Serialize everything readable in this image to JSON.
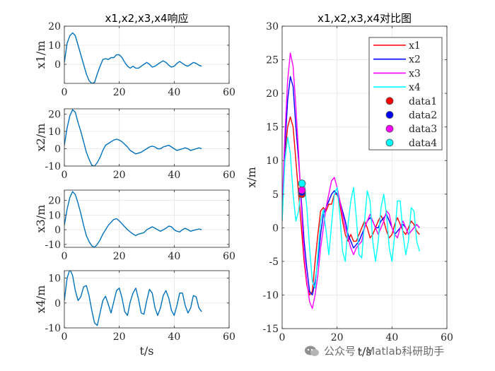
{
  "colors": {
    "x1": "#ff0000",
    "x2": "#0000ff",
    "x3": "#ff00ff",
    "x4": "#00ffff",
    "subplot_line": "#0072bd",
    "grid": "#e6e6e6",
    "axis": "#262626",
    "marker_edge_data1": "#8a6d00"
  },
  "watermark": "公众号 · Matlab科研助手",
  "chart_data": [
    {
      "type": "line",
      "title": "x1,x2,x3,x4响应",
      "xlabel": "",
      "ylabel": "x1/m",
      "xlim": [
        0,
        60
      ],
      "ylim": [
        -10,
        20
      ],
      "xticks": [
        "0",
        "20",
        "40",
        "60"
      ],
      "yticks": [
        "20",
        "10",
        "0"
      ],
      "grid": true,
      "series": [
        {
          "x": [
            0,
            1,
            2,
            3,
            4,
            5,
            6,
            7,
            8,
            9,
            10,
            11,
            12,
            13,
            14,
            15,
            16,
            17,
            18,
            19,
            20,
            21,
            22,
            23,
            24,
            25,
            26,
            27,
            28,
            29,
            30,
            31,
            32,
            33,
            34,
            35,
            36,
            37,
            38,
            39,
            40,
            41,
            42,
            43,
            44,
            45,
            46,
            47,
            48,
            49,
            50
          ],
          "values": [
            1,
            11,
            15,
            16.5,
            15,
            10,
            5,
            0,
            -5,
            -8.5,
            -10,
            -9.5,
            -5,
            -1,
            2.5,
            3,
            2.5,
            3.5,
            3.5,
            5,
            5,
            3.5,
            1,
            -1,
            -2,
            -1,
            -2,
            -2,
            -1,
            0,
            1,
            0,
            -1.5,
            -1,
            0,
            1,
            1.8,
            1,
            -0.5,
            -1.5,
            -1,
            0.5,
            1.5,
            0.5,
            -0.5,
            -1,
            0,
            1,
            0.5,
            -0.5,
            -1
          ]
        }
      ]
    },
    {
      "type": "line",
      "xlabel": "",
      "ylabel": "x2/m",
      "xlim": [
        0,
        60
      ],
      "ylim": [
        -10,
        23
      ],
      "xticks": [
        "0",
        "20",
        "40",
        "60"
      ],
      "yticks": [
        "20",
        "10",
        "0",
        "-10"
      ],
      "grid": true,
      "series": [
        {
          "x": [
            0,
            1,
            2,
            3,
            4,
            5,
            6,
            7,
            8,
            9,
            10,
            11,
            12,
            13,
            14,
            15,
            16,
            17,
            18,
            19,
            20,
            21,
            22,
            23,
            24,
            25,
            26,
            27,
            28,
            29,
            30,
            31,
            32,
            33,
            34,
            35,
            36,
            37,
            38,
            39,
            40,
            41,
            42,
            43,
            44,
            45,
            46,
            47,
            48,
            49,
            50
          ],
          "values": [
            2,
            12,
            19,
            22.5,
            21,
            15,
            10,
            4,
            -2,
            -6,
            -9.5,
            -10,
            -8,
            -5,
            -1,
            2,
            3,
            4,
            5,
            5.5,
            5,
            4,
            2.5,
            1,
            -1,
            -2,
            -3,
            -2.5,
            -2,
            -1,
            0,
            1,
            1.5,
            1,
            0,
            0,
            1,
            1.5,
            2,
            1,
            0,
            -1,
            -0.5,
            0,
            0.5,
            0,
            -1,
            -0.5,
            0,
            0.5,
            0
          ]
        }
      ]
    },
    {
      "type": "line",
      "xlabel": "",
      "ylabel": "x3/m",
      "xlim": [
        0,
        60
      ],
      "ylim": [
        -12,
        27
      ],
      "xticks": [
        "0",
        "20",
        "40",
        "60"
      ],
      "yticks": [
        "20",
        "10",
        "0",
        "-10"
      ],
      "grid": true,
      "series": [
        {
          "x": [
            0,
            1,
            2,
            3,
            4,
            5,
            6,
            7,
            8,
            9,
            10,
            11,
            12,
            13,
            14,
            15,
            16,
            17,
            18,
            19,
            20,
            21,
            22,
            23,
            24,
            25,
            26,
            27,
            28,
            29,
            30,
            31,
            32,
            33,
            34,
            35,
            36,
            37,
            38,
            39,
            40,
            41,
            42,
            43,
            44,
            45,
            46,
            47,
            48,
            49,
            50
          ],
          "values": [
            3,
            14,
            22,
            26,
            24,
            18,
            11,
            3,
            -4,
            -8,
            -11,
            -12,
            -10,
            -7,
            -3,
            0,
            3,
            5,
            7,
            7.5,
            6,
            4,
            2,
            0,
            -1.5,
            -3,
            -4,
            -3,
            -2.5,
            -2,
            0,
            1,
            2,
            1,
            0,
            -1,
            0,
            1,
            2.5,
            2,
            0,
            -1,
            -1.5,
            0,
            1,
            0,
            -1,
            -0.5,
            0,
            0.5,
            0
          ]
        }
      ]
    },
    {
      "type": "line",
      "xlabel": "t/s",
      "ylabel": "x4/m",
      "xlim": [
        0,
        60
      ],
      "ylim": [
        -10,
        13
      ],
      "xticks": [
        "0",
        "20",
        "40",
        "60"
      ],
      "yticks": [
        "10",
        "0",
        "-10"
      ],
      "grid": true,
      "series": [
        {
          "x": [
            0,
            1,
            2,
            3,
            4,
            5,
            6,
            7,
            8,
            9,
            10,
            11,
            12,
            13,
            14,
            15,
            16,
            17,
            18,
            19,
            20,
            21,
            22,
            23,
            24,
            25,
            26,
            27,
            28,
            29,
            30,
            31,
            32,
            33,
            34,
            35,
            36,
            37,
            38,
            39,
            40,
            41,
            42,
            43,
            44,
            45,
            46,
            47,
            48,
            49,
            50
          ],
          "values": [
            1,
            10,
            13.5,
            11,
            5,
            1,
            2.5,
            6.5,
            7,
            3,
            -3,
            -8,
            -9,
            -4,
            1,
            2.7,
            -0.5,
            -4,
            0.5,
            5,
            6,
            2,
            -3.5,
            -5,
            0.5,
            4,
            6,
            1.5,
            -4,
            -4.5,
            1,
            5.5,
            4,
            -2,
            -5,
            -2,
            3,
            5,
            2,
            -3,
            -5,
            -1,
            4,
            4,
            -1,
            -4,
            -2,
            3,
            2.5,
            -2,
            -3.5
          ]
        }
      ]
    },
    {
      "type": "line",
      "title": "x1,x2,x3,x4对比图",
      "xlabel": "t/s",
      "ylabel": "x/m",
      "xlim": [
        0,
        60
      ],
      "ylim": [
        -15,
        30
      ],
      "xticks": [
        "0",
        "20",
        "40",
        "60"
      ],
      "yticks": [
        "30",
        "25",
        "20",
        "15",
        "10",
        "5",
        "0",
        "-5",
        "-10",
        "-15"
      ],
      "grid": true,
      "legend": "top-right",
      "series": [
        {
          "name": "x1",
          "color": "#ff0000",
          "x": [
            0,
            1,
            2,
            3,
            4,
            5,
            6,
            7,
            8,
            9,
            10,
            11,
            12,
            13,
            14,
            15,
            16,
            17,
            18,
            19,
            20,
            21,
            22,
            23,
            24,
            25,
            26,
            27,
            28,
            29,
            30,
            31,
            32,
            33,
            34,
            35,
            36,
            37,
            38,
            39,
            40,
            41,
            42,
            43,
            44,
            45,
            46,
            47,
            48,
            49,
            50
          ],
          "values": [
            1,
            11,
            15,
            16.5,
            15,
            10,
            5,
            0,
            -5,
            -8.5,
            -10,
            -9.5,
            -5,
            -1,
            2.5,
            3,
            2.5,
            3.5,
            3.5,
            5,
            5,
            3.5,
            1,
            -1,
            -2,
            -1,
            -2,
            -2,
            -1,
            0,
            1,
            0,
            -1.5,
            -1,
            0,
            1,
            1.8,
            1,
            -0.5,
            -1.5,
            -1,
            0.5,
            1.5,
            0.5,
            -0.5,
            -1,
            0,
            1,
            0.5,
            -0.5,
            -1
          ]
        },
        {
          "name": "x2",
          "color": "#0000ff",
          "x": [
            0,
            1,
            2,
            3,
            4,
            5,
            6,
            7,
            8,
            9,
            10,
            11,
            12,
            13,
            14,
            15,
            16,
            17,
            18,
            19,
            20,
            21,
            22,
            23,
            24,
            25,
            26,
            27,
            28,
            29,
            30,
            31,
            32,
            33,
            34,
            35,
            36,
            37,
            38,
            39,
            40,
            41,
            42,
            43,
            44,
            45,
            46,
            47,
            48,
            49,
            50
          ],
          "values": [
            2,
            12,
            19,
            22.5,
            21,
            15,
            10,
            4,
            -2,
            -6,
            -9.5,
            -10,
            -8,
            -5,
            -1,
            2,
            3,
            4,
            5,
            5.5,
            5,
            4,
            2.5,
            1,
            -1,
            -2,
            -3,
            -2.5,
            -2,
            -1,
            0,
            1,
            1.5,
            1,
            0,
            0,
            1,
            1.5,
            2,
            1,
            0,
            -1,
            -0.5,
            0,
            0.5,
            0,
            -1,
            -0.5,
            0,
            0.5,
            0
          ]
        },
        {
          "name": "x3",
          "color": "#ff00ff",
          "x": [
            0,
            1,
            2,
            3,
            4,
            5,
            6,
            7,
            8,
            9,
            10,
            11,
            12,
            13,
            14,
            15,
            16,
            17,
            18,
            19,
            20,
            21,
            22,
            23,
            24,
            25,
            26,
            27,
            28,
            29,
            30,
            31,
            32,
            33,
            34,
            35,
            36,
            37,
            38,
            39,
            40,
            41,
            42,
            43,
            44,
            45,
            46,
            47,
            48,
            49,
            50
          ],
          "values": [
            3,
            14,
            22,
            26,
            24,
            18,
            11,
            3,
            -4,
            -8,
            -11,
            -12,
            -10,
            -7,
            -3,
            0,
            3,
            5,
            7,
            7.5,
            6,
            4,
            2,
            0,
            -1.5,
            -3,
            -4,
            -3,
            -2.5,
            -2,
            0,
            1,
            2,
            1,
            0,
            -1,
            0,
            1,
            2.5,
            2,
            0,
            -1,
            -1.5,
            0,
            1,
            0,
            -1,
            -0.5,
            0,
            0.5,
            0
          ]
        },
        {
          "name": "x4",
          "color": "#00ffff",
          "x": [
            0,
            1,
            2,
            3,
            4,
            5,
            6,
            7,
            8,
            9,
            10,
            11,
            12,
            13,
            14,
            15,
            16,
            17,
            18,
            19,
            20,
            21,
            22,
            23,
            24,
            25,
            26,
            27,
            28,
            29,
            30,
            31,
            32,
            33,
            34,
            35,
            36,
            37,
            38,
            39,
            40,
            41,
            42,
            43,
            44,
            45,
            46,
            47,
            48,
            49,
            50
          ],
          "values": [
            1,
            10,
            13.5,
            11,
            5,
            1,
            2.5,
            6.5,
            7,
            3,
            -3,
            -8,
            -9,
            -4,
            1,
            2.7,
            -0.5,
            -4,
            0.5,
            5,
            6,
            2,
            -3.5,
            -5,
            0.5,
            4,
            6,
            1.5,
            -4,
            -4.5,
            1,
            5.5,
            4,
            -2,
            -5,
            -2,
            3,
            5,
            2,
            -3,
            -5,
            -1,
            4,
            4,
            -1,
            -4,
            -2,
            3,
            2.5,
            -2,
            -3.5
          ]
        }
      ],
      "markers": [
        {
          "name": "data1",
          "x": 7.2,
          "y": 5.0,
          "color": "#ff0000"
        },
        {
          "name": "data2",
          "x": 7.2,
          "y": 5.3,
          "color": "#0000ff"
        },
        {
          "name": "data3",
          "x": 7.2,
          "y": 5.6,
          "color": "#ff00ff"
        },
        {
          "name": "data4",
          "x": 7.2,
          "y": 6.6,
          "color": "#00ffff"
        }
      ]
    }
  ]
}
